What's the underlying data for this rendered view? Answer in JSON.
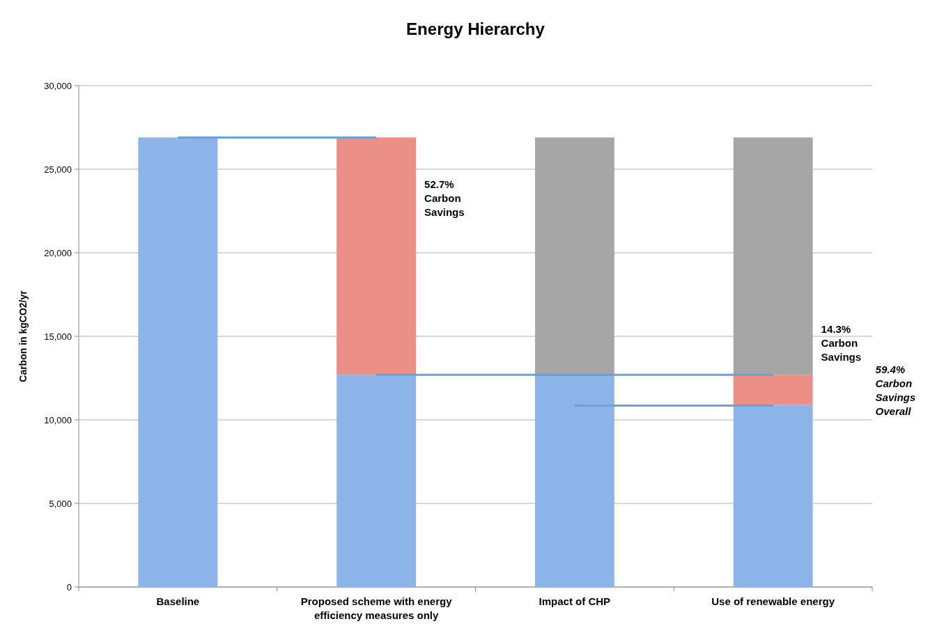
{
  "chart_data": {
    "type": "bar",
    "title": "Energy Hierarchy",
    "ylabel": "Carbon in kgCO2/yr",
    "stacked": true,
    "categories": [
      "Baseline",
      "Proposed scheme with energy efficiency measures only",
      "Impact of CHP",
      "Use of renewable energy"
    ],
    "series": [
      {
        "color": "#8db4e8",
        "values": [
          26900,
          12700,
          12700,
          10900
        ]
      },
      {
        "color": "#ec8f86",
        "values": [
          null,
          14200,
          null,
          1800
        ]
      },
      {
        "color": "#a6a6a6",
        "values": [
          null,
          null,
          14200,
          14200
        ]
      },
      {
        "type": "line",
        "color": "#6f9fd6",
        "values": [
          26900,
          26900,
          null,
          null
        ]
      },
      {
        "type": "line",
        "color": "#6f9fd6",
        "values": [
          null,
          12700,
          12700,
          12700
        ]
      },
      {
        "type": "line",
        "color": "#6f9fd6",
        "values": [
          null,
          null,
          10850,
          10850
        ]
      }
    ],
    "ylim": [
      0,
      30000
    ],
    "yticks": [
      {
        "value": 0,
        "label": "0"
      },
      {
        "value": 5000,
        "label": "5,000"
      },
      {
        "value": 10000,
        "label": "10,000"
      },
      {
        "value": 15000,
        "label": "15,000"
      },
      {
        "value": 20000,
        "label": "20,000"
      },
      {
        "value": 25000,
        "label": "25,000"
      },
      {
        "value": 30000,
        "label": "30,000"
      }
    ],
    "grid": "y",
    "annotations": [
      "52.7%\nCarbon\nSavings",
      "14.3%\nCarbon\nSavings",
      "59.4%\nCarbon\nSavings\nOverall"
    ]
  }
}
